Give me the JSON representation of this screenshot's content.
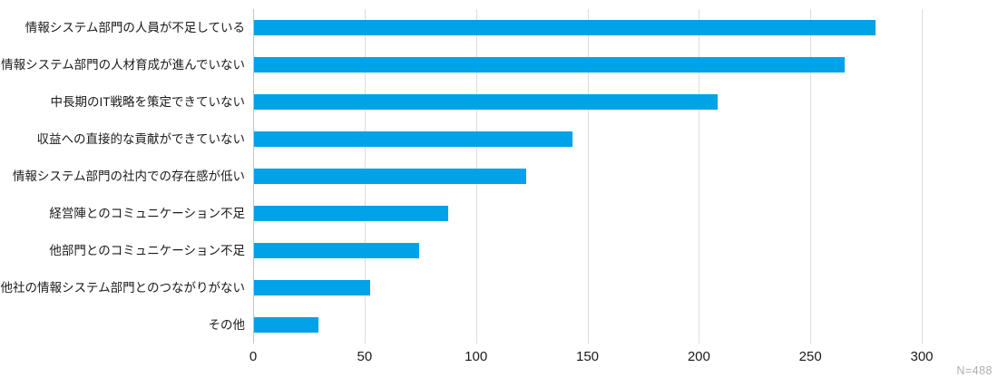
{
  "chart_data": {
    "type": "bar",
    "orientation": "horizontal",
    "title": "",
    "xlabel": "",
    "ylabel": "",
    "categories": [
      "情報システム部門の人員が不足している",
      "情報システム部門の人材育成が進んでいない",
      "中長期のIT戦略を策定できていない",
      "収益への直接的な貢献ができていない",
      "情報システム部門の社内での存在感が低い",
      "経営陣とのコミュニケーション不足",
      "他部門とのコミュニケーション不足",
      "他社の情報システム部門とのつながりがない",
      "その他"
    ],
    "values": [
      279,
      265,
      208,
      143,
      122,
      87,
      74,
      52,
      29
    ],
    "xlim": [
      0,
      300
    ],
    "xticks": [
      0,
      50,
      100,
      150,
      200,
      250,
      300
    ],
    "grid": true,
    "legend": "none",
    "note": "N=488",
    "colors": {
      "bar": "#00a2e8",
      "gridline": "#dcdcdc",
      "zero_line": "#c3c3c3",
      "text": "#1a1a1a",
      "note_text": "#aeaeae",
      "background": "#ffffff"
    }
  }
}
